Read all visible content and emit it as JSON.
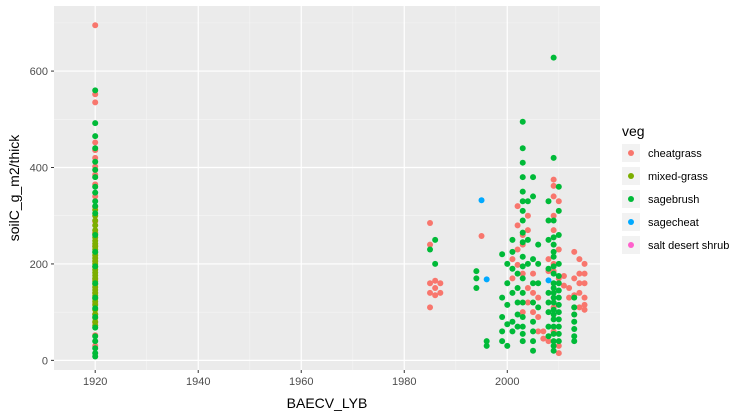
{
  "chart_data": {
    "type": "scatter",
    "title": "",
    "xlabel": "BAECV_LYB",
    "ylabel": "soilC_g_m2/thick",
    "xlim": [
      1912,
      2018
    ],
    "ylim": [
      -20,
      735
    ],
    "x_ticks": [
      1920,
      1940,
      1960,
      1980,
      2000
    ],
    "y_ticks": [
      0,
      200,
      400,
      600
    ],
    "grid": true,
    "legend": {
      "title": "veg",
      "placement": "right"
    },
    "series": [
      {
        "name": "cheatgrass",
        "color": "#F8766D",
        "points": [
          [
            1920,
            695
          ],
          [
            1920,
            552
          ],
          [
            1920,
            535
          ],
          [
            1920,
            452
          ],
          [
            1920,
            436
          ],
          [
            1920,
            420
          ],
          [
            1920,
            402
          ],
          [
            1920,
            385
          ],
          [
            1920,
            365
          ],
          [
            1920,
            340
          ],
          [
            1920,
            318
          ],
          [
            1920,
            288
          ],
          [
            1920,
            265
          ],
          [
            1920,
            238
          ],
          [
            1920,
            205
          ],
          [
            1920,
            168
          ],
          [
            1920,
            140
          ],
          [
            1920,
            118
          ],
          [
            1920,
            95
          ],
          [
            1920,
            78
          ],
          [
            1920,
            52
          ],
          [
            1920,
            30
          ],
          [
            1985,
            285
          ],
          [
            1985,
            240
          ],
          [
            1985,
            160
          ],
          [
            1985,
            140
          ],
          [
            1985,
            110
          ],
          [
            1986,
            165
          ],
          [
            1986,
            150
          ],
          [
            1986,
            135
          ],
          [
            1987,
            160
          ],
          [
            1987,
            140
          ],
          [
            1995,
            258
          ],
          [
            2001,
            210
          ],
          [
            2001,
            170
          ],
          [
            2002,
            320
          ],
          [
            2002,
            280
          ],
          [
            2002,
            230
          ],
          [
            2002,
            198
          ],
          [
            2003,
            260
          ],
          [
            2003,
            240
          ],
          [
            2003,
            180
          ],
          [
            2003,
            100
          ],
          [
            2004,
            300
          ],
          [
            2004,
            270
          ],
          [
            2004,
            150
          ],
          [
            2004,
            120
          ],
          [
            2005,
            180
          ],
          [
            2005,
            140
          ],
          [
            2005,
            100
          ],
          [
            2006,
            130
          ],
          [
            2006,
            90
          ],
          [
            2006,
            60
          ],
          [
            2007,
            45
          ],
          [
            2007,
            60
          ],
          [
            2008,
            210
          ],
          [
            2008,
            185
          ],
          [
            2008,
            40
          ],
          [
            2009,
            375
          ],
          [
            2009,
            362
          ],
          [
            2009,
            340
          ],
          [
            2009,
            300
          ],
          [
            2009,
            270
          ],
          [
            2009,
            200
          ],
          [
            2009,
            185
          ],
          [
            2009,
            110
          ],
          [
            2009,
            60
          ],
          [
            2010,
            330
          ],
          [
            2010,
            230
          ],
          [
            2010,
            170
          ],
          [
            2010,
            30
          ],
          [
            2010,
            15
          ],
          [
            2011,
            175
          ],
          [
            2011,
            155
          ],
          [
            2012,
            150
          ],
          [
            2012,
            130
          ],
          [
            2013,
            225
          ],
          [
            2013,
            170
          ],
          [
            2013,
            135
          ],
          [
            2013,
            110
          ],
          [
            2013,
            95
          ],
          [
            2014,
            210
          ],
          [
            2014,
            180
          ],
          [
            2014,
            160
          ],
          [
            2014,
            140
          ],
          [
            2014,
            110
          ],
          [
            2015,
            200
          ],
          [
            2015,
            180
          ],
          [
            2015,
            160
          ],
          [
            2015,
            130
          ],
          [
            2015,
            115
          ],
          [
            2015,
            105
          ]
        ]
      },
      {
        "name": "mixed-grass",
        "color": "#7CAE00",
        "points": [
          [
            1920,
            312
          ],
          [
            1920,
            300
          ],
          [
            1920,
            290
          ],
          [
            1920,
            280
          ],
          [
            1920,
            270
          ],
          [
            1920,
            262
          ],
          [
            1920,
            255
          ],
          [
            1920,
            248
          ],
          [
            1920,
            242
          ],
          [
            1920,
            236
          ],
          [
            1920,
            230
          ],
          [
            1920,
            224
          ],
          [
            1920,
            218
          ],
          [
            1920,
            212
          ],
          [
            1920,
            206
          ],
          [
            1920,
            200
          ],
          [
            1920,
            194
          ],
          [
            1920,
            188
          ],
          [
            1920,
            182
          ],
          [
            1920,
            176
          ],
          [
            1920,
            170
          ],
          [
            1920,
            164
          ],
          [
            1920,
            158
          ],
          [
            1920,
            152
          ],
          [
            1920,
            146
          ],
          [
            1920,
            140
          ],
          [
            1920,
            134
          ],
          [
            1920,
            128
          ],
          [
            1920,
            122
          ],
          [
            1920,
            115
          ],
          [
            1920,
            105
          ],
          [
            1920,
            96
          ],
          [
            1920,
            88
          ],
          [
            1920,
            80
          ],
          [
            1920,
            72
          ]
        ]
      },
      {
        "name": "sagebrush",
        "color": "#00BA38",
        "points": [
          [
            1920,
            560
          ],
          [
            1920,
            492
          ],
          [
            1920,
            465
          ],
          [
            1920,
            440
          ],
          [
            1920,
            412
          ],
          [
            1920,
            395
          ],
          [
            1920,
            380
          ],
          [
            1920,
            360
          ],
          [
            1920,
            348
          ],
          [
            1920,
            330
          ],
          [
            1920,
            320
          ],
          [
            1920,
            305
          ],
          [
            1920,
            260
          ],
          [
            1920,
            225
          ],
          [
            1920,
            195
          ],
          [
            1920,
            160
          ],
          [
            1920,
            130
          ],
          [
            1920,
            108
          ],
          [
            1920,
            90
          ],
          [
            1920,
            68
          ],
          [
            1920,
            50
          ],
          [
            1920,
            40
          ],
          [
            1920,
            25
          ],
          [
            1920,
            15
          ],
          [
            1920,
            8
          ],
          [
            1985,
            230
          ],
          [
            1986,
            250
          ],
          [
            1986,
            200
          ],
          [
            1994,
            185
          ],
          [
            1994,
            170
          ],
          [
            1994,
            150
          ],
          [
            1996,
            40
          ],
          [
            1996,
            30
          ],
          [
            1999,
            220
          ],
          [
            1999,
            130
          ],
          [
            1999,
            90
          ],
          [
            1999,
            60
          ],
          [
            1999,
            40
          ],
          [
            2000,
            200
          ],
          [
            2000,
            160
          ],
          [
            2000,
            115
          ],
          [
            2000,
            75
          ],
          [
            2000,
            30
          ],
          [
            2001,
            250
          ],
          [
            2001,
            225
          ],
          [
            2001,
            190
          ],
          [
            2001,
            140
          ],
          [
            2001,
            80
          ],
          [
            2001,
            60
          ],
          [
            2002,
            180
          ],
          [
            2002,
            150
          ],
          [
            2002,
            120
          ],
          [
            2002,
            95
          ],
          [
            2002,
            70
          ],
          [
            2003,
            495
          ],
          [
            2003,
            440
          ],
          [
            2003,
            410
          ],
          [
            2003,
            380
          ],
          [
            2003,
            350
          ],
          [
            2003,
            330
          ],
          [
            2003,
            310
          ],
          [
            2003,
            290
          ],
          [
            2003,
            265
          ],
          [
            2003,
            245
          ],
          [
            2003,
            215
          ],
          [
            2003,
            195
          ],
          [
            2003,
            170
          ],
          [
            2003,
            140
          ],
          [
            2003,
            120
          ],
          [
            2003,
            90
          ],
          [
            2003,
            70
          ],
          [
            2003,
            55
          ],
          [
            2003,
            40
          ],
          [
            2004,
            330
          ],
          [
            2004,
            250
          ],
          [
            2004,
            200
          ],
          [
            2005,
            380
          ],
          [
            2005,
            340
          ],
          [
            2005,
            210
          ],
          [
            2005,
            160
          ],
          [
            2005,
            120
          ],
          [
            2005,
            80
          ],
          [
            2005,
            60
          ],
          [
            2005,
            40
          ],
          [
            2005,
            20
          ],
          [
            2006,
            240
          ],
          [
            2006,
            200
          ],
          [
            2006,
            160
          ],
          [
            2006,
            110
          ],
          [
            2008,
            330
          ],
          [
            2008,
            290
          ],
          [
            2008,
            250
          ],
          [
            2008,
            190
          ],
          [
            2008,
            140
          ],
          [
            2008,
            120
          ],
          [
            2008,
            100
          ],
          [
            2008,
            70
          ],
          [
            2008,
            50
          ],
          [
            2009,
            628
          ],
          [
            2009,
            420
          ],
          [
            2009,
            290
          ],
          [
            2009,
            255
          ],
          [
            2009,
            240
          ],
          [
            2009,
            225
          ],
          [
            2009,
            215
          ],
          [
            2009,
            195
          ],
          [
            2009,
            180
          ],
          [
            2009,
            160
          ],
          [
            2009,
            150
          ],
          [
            2009,
            140
          ],
          [
            2009,
            130
          ],
          [
            2009,
            120
          ],
          [
            2009,
            105
          ],
          [
            2009,
            95
          ],
          [
            2009,
            85
          ],
          [
            2009,
            70
          ],
          [
            2009,
            55
          ],
          [
            2009,
            40
          ],
          [
            2009,
            30
          ],
          [
            2009,
            20
          ],
          [
            2010,
            360
          ],
          [
            2010,
            310
          ],
          [
            2010,
            260
          ],
          [
            2010,
            200
          ],
          [
            2010,
            175
          ],
          [
            2010,
            160
          ],
          [
            2010,
            145
          ],
          [
            2010,
            130
          ],
          [
            2010,
            115
          ],
          [
            2010,
            100
          ],
          [
            2010,
            85
          ],
          [
            2010,
            70
          ],
          [
            2010,
            55
          ],
          [
            2010,
            40
          ],
          [
            2013,
            130
          ],
          [
            2013,
            110
          ],
          [
            2013,
            95
          ],
          [
            2013,
            80
          ],
          [
            2013,
            65
          ],
          [
            2013,
            50
          ],
          [
            2013,
            40
          ]
        ]
      },
      {
        "name": "sagecheat",
        "color": "#00A9FF",
        "points": [
          [
            1995,
            332
          ],
          [
            1996,
            168
          ],
          [
            2008,
            166
          ]
        ]
      },
      {
        "name": "salt desert shrub",
        "color": "#FF61CC",
        "points": []
      }
    ]
  }
}
